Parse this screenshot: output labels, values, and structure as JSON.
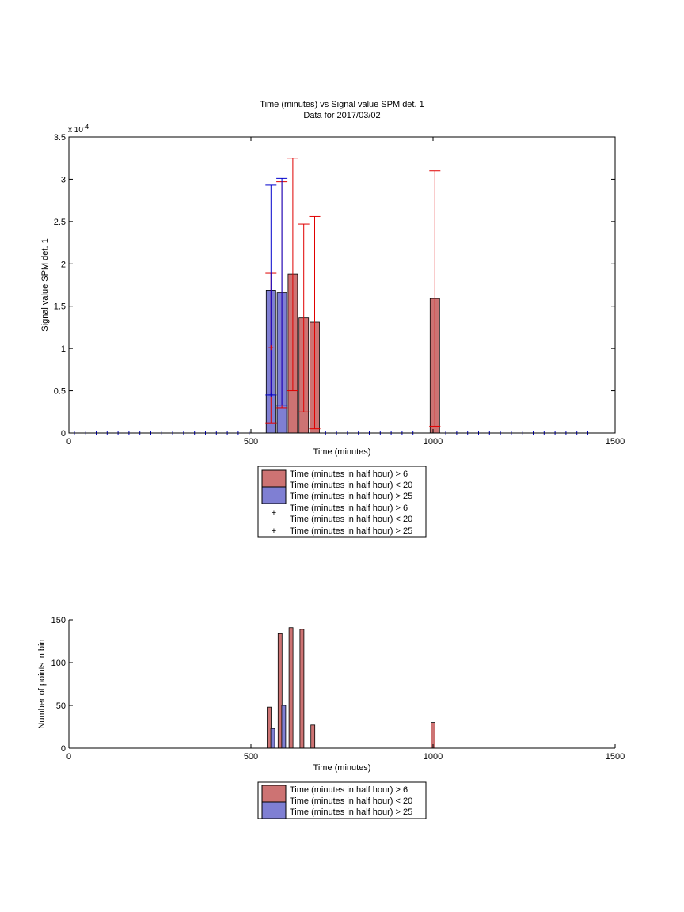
{
  "colors": {
    "red_fill": "#cd7373",
    "blue_fill": "#7f7fd3",
    "red_line": "#e00000",
    "blue_line": "#0000cc",
    "axis": "#000000"
  },
  "chart_data": [
    {
      "type": "bar",
      "title": "Time (minutes) vs Signal value SPM det. 1",
      "subtitle": "Data for 2017/03/02",
      "xlabel": "Time (minutes)",
      "ylabel": "Signal value SPM det. 1",
      "y_multiplier_label": "x 10",
      "y_multiplier_exponent": "-4",
      "xlim": [
        0,
        1500
      ],
      "ylim": [
        0,
        3.5
      ],
      "x_ticks": [
        "0",
        "500",
        "1000",
        "1500"
      ],
      "y_ticks": [
        "0",
        "0.5",
        "1",
        "1.5",
        "2",
        "2.5",
        "3",
        "3.5"
      ],
      "grid": false,
      "legend_placement": "below",
      "legend": [
        "Time (minutes in half hour) > 6",
        "Time (minutes in half hour) < 20",
        "Time (minutes in half hour) > 25",
        "Time (minutes in half hour) > 6",
        "Time (minutes in half hour) < 20",
        "Time (minutes in half hour) > 25"
      ],
      "series": [
        {
          "color": "red",
          "bars": [
            {
              "x": 615,
              "value": 1.88,
              "err_low": 0.5,
              "err_high": 3.25
            },
            {
              "x": 645,
              "value": 1.36,
              "err_low": 0.25,
              "err_high": 2.47
            },
            {
              "x": 675,
              "value": 1.31,
              "err_low": 0.05,
              "err_high": 2.56
            },
            {
              "x": 1005,
              "value": 1.59,
              "err_low": 0.08,
              "err_high": 3.1
            },
            {
              "x": 555,
              "value": 0.45,
              "err_low": 0.12,
              "err_high": 1.89
            },
            {
              "x": 585,
              "value": 0.33,
              "err_low": 0.3,
              "err_high": 2.97
            }
          ]
        },
        {
          "color": "blue",
          "bars": [
            {
              "x": 555,
              "value": 1.69,
              "err_low": 0.45,
              "err_high": 2.93
            },
            {
              "x": 585,
              "value": 1.66,
              "err_low": 0.33,
              "err_high": 3.01
            }
          ]
        }
      ],
      "zero_markers_x": [
        15,
        45,
        75,
        105,
        135,
        165,
        195,
        225,
        255,
        285,
        315,
        345,
        375,
        405,
        435,
        465,
        495,
        525,
        705,
        735,
        765,
        795,
        825,
        855,
        885,
        915,
        945,
        975,
        1035,
        1065,
        1095,
        1125,
        1155,
        1185,
        1215,
        1245,
        1275,
        1305,
        1335,
        1365,
        1395,
        1425
      ],
      "plus_markers": [
        {
          "x": 555,
          "value": 1.01,
          "color": "red"
        },
        {
          "x": 555,
          "value": 0.45,
          "color": "blue"
        }
      ]
    },
    {
      "type": "bar",
      "xlabel": "Time (minutes)",
      "ylabel": "Number of points in bin",
      "xlim": [
        0,
        1500
      ],
      "ylim": [
        0,
        150
      ],
      "x_ticks": [
        "0",
        "500",
        "1000",
        "1500"
      ],
      "y_ticks": [
        "0",
        "50",
        "100",
        "150"
      ],
      "grid": false,
      "legend_placement": "below",
      "legend": [
        "Time (minutes in half hour) > 6",
        "Time (minutes in half hour) < 20",
        "Time (minutes in half hour) > 25"
      ],
      "series": [
        {
          "color": "red",
          "bars": [
            {
              "x": 550,
              "value": 48
            },
            {
              "x": 580,
              "value": 134
            },
            {
              "x": 610,
              "value": 141
            },
            {
              "x": 640,
              "value": 139
            },
            {
              "x": 670,
              "value": 27
            },
            {
              "x": 1000,
              "value": 30
            }
          ]
        },
        {
          "color": "blue",
          "bars": [
            {
              "x": 560,
              "value": 23
            },
            {
              "x": 590,
              "value": 50
            }
          ]
        }
      ]
    }
  ]
}
